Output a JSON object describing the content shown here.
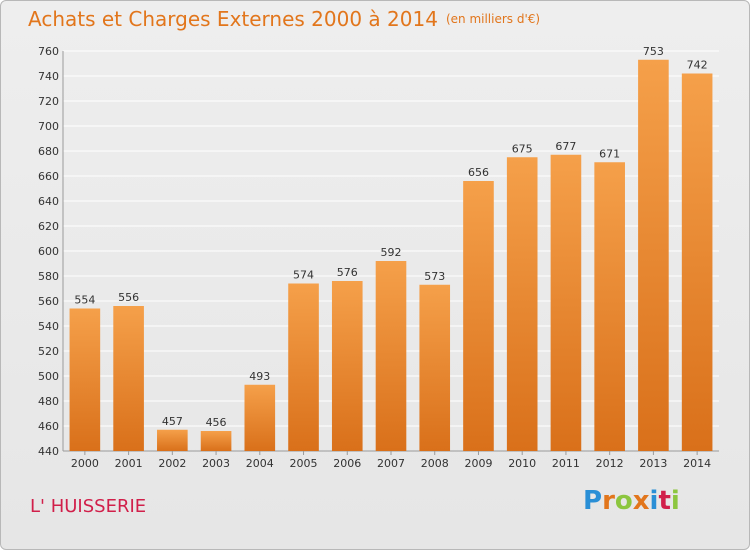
{
  "header": {
    "title": "Achats et Charges Externes 2000 à 2014",
    "subtitle": "(en milliers d'€)"
  },
  "location_label": "L' HUISSERIE",
  "logo": {
    "text": "Proxiti",
    "letter_colors": [
      "#2a8fd6",
      "#e2761c",
      "#8cc63f",
      "#e2761c",
      "#2a8fd6",
      "#d11f4a",
      "#8cc63f"
    ]
  },
  "colors": {
    "bar": "#f0943a",
    "bar_dark": "#d9701a",
    "grid": "#ffffff",
    "axis_text": "#333333"
  },
  "chart_data": {
    "type": "bar",
    "title": "Achats et Charges Externes 2000 à 2014",
    "subtitle": "(en milliers d'€)",
    "categories": [
      "2000",
      "2001",
      "2002",
      "2003",
      "2004",
      "2005",
      "2006",
      "2007",
      "2008",
      "2009",
      "2010",
      "2011",
      "2012",
      "2013",
      "2014"
    ],
    "values": [
      554,
      556,
      457,
      456,
      493,
      574,
      576,
      592,
      573,
      656,
      675,
      677,
      671,
      753,
      742
    ],
    "ylim": [
      440,
      760
    ],
    "yticks": [
      440,
      460,
      480,
      500,
      520,
      540,
      560,
      580,
      600,
      620,
      640,
      660,
      680,
      700,
      720,
      740,
      760
    ],
    "grid": true,
    "data_labels": true
  }
}
